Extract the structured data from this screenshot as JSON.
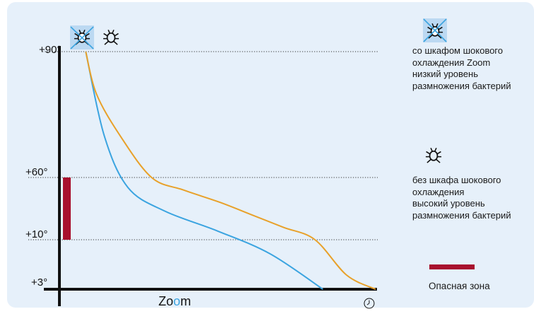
{
  "chart_data": {
    "type": "line",
    "x_axis_label_parts": [
      "Zo",
      "o",
      "m"
    ],
    "y_ticks": [
      "+90°",
      "+60°",
      "+10°",
      "+3°"
    ],
    "series": [
      {
        "icon": "bacteria-crossed-icon",
        "color": "#3ba4e0",
        "points": [
          [
            0.1,
            90
          ],
          [
            0.17,
            70
          ],
          [
            0.26,
            52
          ],
          [
            0.4,
            33
          ],
          [
            0.6,
            17
          ],
          [
            0.8,
            8
          ],
          [
            1.0,
            3
          ]
        ]
      },
      {
        "icon": "bacteria-icon",
        "color": "#e8a12a",
        "points": [
          [
            0.1,
            90
          ],
          [
            0.14,
            80
          ],
          [
            0.23,
            70
          ],
          [
            0.35,
            60
          ],
          [
            0.47,
            50
          ],
          [
            0.61,
            40
          ],
          [
            0.73,
            30
          ],
          [
            0.85,
            20
          ],
          [
            0.97,
            10
          ],
          [
            1.09,
            5
          ],
          [
            1.2,
            3
          ]
        ]
      }
    ],
    "danger_zone": {
      "from": 10,
      "to": 60,
      "color": "#a8102e"
    },
    "grid": "dotted at y ticks",
    "legend": [
      {
        "icon": "bacteria-crossed-icon",
        "lines": [
          "со шкафом шокового",
          "охлаждения Zoom",
          "низкий уровень",
          "размножения бактерий"
        ]
      },
      {
        "icon": "bacteria-icon",
        "lines": [
          "без шкафа шокового",
          "охлаждения",
          "высокий уровень",
          "размножения бактерий"
        ]
      },
      {
        "swatch": "danger_zone",
        "lines": [
          "Опасная зона"
        ]
      }
    ]
  },
  "colors": {
    "background": "#e6f0fa",
    "axis": "#111111",
    "accent_o": "#3ba4e0",
    "icon_highlight": "#bcd9f2"
  }
}
